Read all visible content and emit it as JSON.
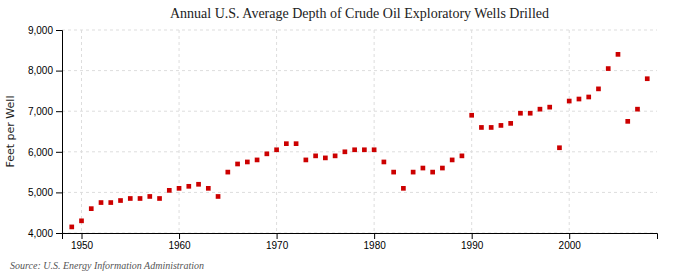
{
  "chart_data": {
    "type": "scatter",
    "title": "Annual U.S. Average Depth of Crude Oil Exploratory Wells Drilled",
    "ylabel": "Feet per Well",
    "annotations": [
      "Source: U.S. Energy Information Administration"
    ],
    "color": "#cc0000",
    "marker": "square",
    "grid": true,
    "xlim": [
      1948,
      2009
    ],
    "ylim": [
      4000,
      9000
    ],
    "xticks": [
      1950,
      1960,
      1970,
      1980,
      1990,
      2000
    ],
    "yticks": [
      {
        "value": 4000,
        "label": "4,000"
      },
      {
        "value": 5000,
        "label": "5,000"
      },
      {
        "value": 6000,
        "label": "6,000"
      },
      {
        "value": 7000,
        "label": "7,000"
      },
      {
        "value": 8000,
        "label": "8,000"
      },
      {
        "value": 9000,
        "label": "9,000"
      }
    ],
    "x": [
      1949,
      1950,
      1951,
      1952,
      1953,
      1954,
      1955,
      1956,
      1957,
      1958,
      1959,
      1960,
      1961,
      1962,
      1963,
      1964,
      1965,
      1966,
      1967,
      1968,
      1969,
      1970,
      1971,
      1972,
      1973,
      1974,
      1975,
      1976,
      1977,
      1978,
      1979,
      1980,
      1981,
      1982,
      1983,
      1984,
      1985,
      1986,
      1987,
      1988,
      1989,
      1990,
      1991,
      1992,
      1993,
      1994,
      1995,
      1996,
      1997,
      1998,
      1999,
      2000,
      2001,
      2002,
      2003,
      2004,
      2005,
      2006,
      2007,
      2008
    ],
    "values": [
      4150,
      4300,
      4600,
      4750,
      4750,
      4800,
      4850,
      4850,
      4900,
      4850,
      5050,
      5100,
      5150,
      5200,
      5100,
      4900,
      5500,
      5700,
      5750,
      5800,
      5950,
      6050,
      6200,
      6200,
      5800,
      5900,
      5850,
      5900,
      6000,
      6050,
      6050,
      6050,
      5750,
      5500,
      5100,
      5500,
      5600,
      5500,
      5600,
      5800,
      5900,
      6900,
      6600,
      6600,
      6650,
      6700,
      6950,
      6950,
      7050,
      7100,
      6100,
      7250,
      7300,
      7350,
      7550,
      8050,
      8400,
      6750,
      7050,
      7800
    ]
  }
}
